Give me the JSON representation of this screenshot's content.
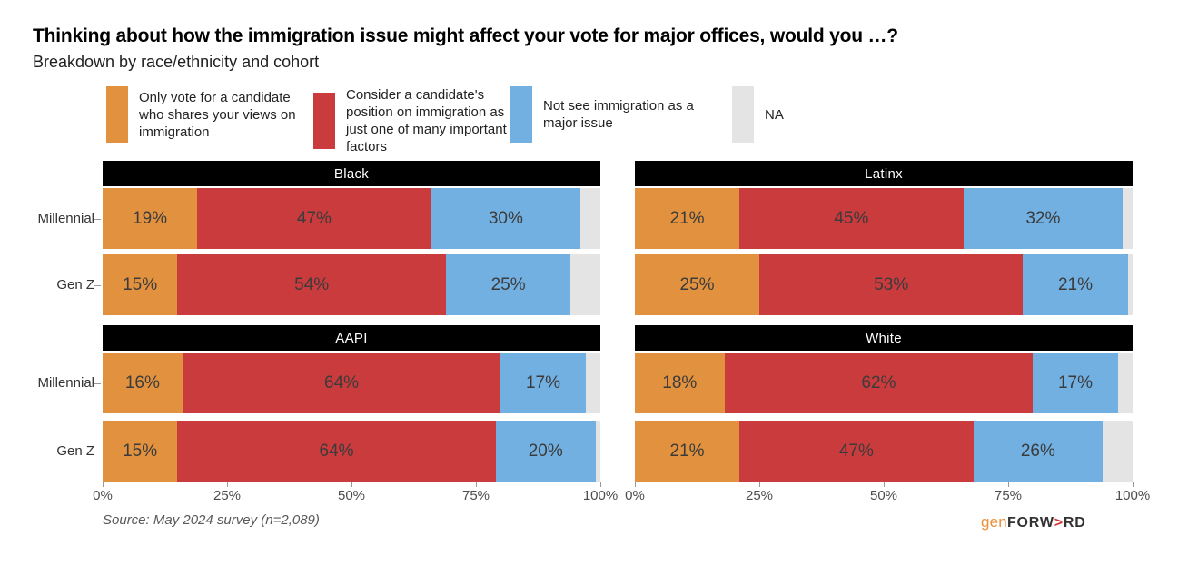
{
  "title": "Thinking about how the immigration issue might affect your vote for major offices, would you …?",
  "subtitle": "Breakdown by race/ethnicity and cohort",
  "legend": [
    {
      "label": "Only vote for a candidate who shares your views on immigration",
      "color": "#E2923F",
      "text_width": 190
    },
    {
      "label": "Consider a candidate's position on immigration as just one of many important factors",
      "color": "#C93B3D",
      "text_width": 178
    },
    {
      "label": "Not see immigration as a major issue",
      "color": "#72B0E2",
      "text_width": 180
    },
    {
      "label": "NA",
      "color": "#E4E4E4",
      "text_width": 60
    }
  ],
  "chart_data": {
    "type": "bar",
    "stacked": true,
    "orientation": "horizontal",
    "series_names": [
      "Only vote for a candidate who shares your views on immigration",
      "Consider a candidate's position on immigration as just one of many important factors",
      "Not see immigration as a major issue",
      "NA"
    ],
    "series_colors": [
      "#E2923F",
      "#C93B3D",
      "#72B0E2",
      "#E4E4E4"
    ],
    "cohorts": [
      "Millennial",
      "Gen Z"
    ],
    "xlim": [
      0,
      100
    ],
    "x_ticks": [
      "0%",
      "25%",
      "50%",
      "75%",
      "100%"
    ],
    "x_tick_values": [
      0,
      25,
      50,
      75,
      100
    ],
    "legend_position": "top",
    "grid": false,
    "na_labels_shown": false,
    "facets": [
      {
        "title": "Black",
        "rows": [
          {
            "cohort": "Millennial",
            "values": [
              19,
              47,
              30,
              4
            ]
          },
          {
            "cohort": "Gen Z",
            "values": [
              15,
              54,
              25,
              6
            ]
          }
        ]
      },
      {
        "title": "Latinx",
        "rows": [
          {
            "cohort": "Millennial",
            "values": [
              21,
              45,
              32,
              2
            ]
          },
          {
            "cohort": "Gen Z",
            "values": [
              25,
              53,
              21,
              1
            ]
          }
        ]
      },
      {
        "title": "AAPI",
        "rows": [
          {
            "cohort": "Millennial",
            "values": [
              16,
              64,
              17,
              3
            ]
          },
          {
            "cohort": "Gen Z",
            "values": [
              15,
              64,
              20,
              1
            ]
          }
        ]
      },
      {
        "title": "White",
        "rows": [
          {
            "cohort": "Millennial",
            "values": [
              18,
              62,
              17,
              3
            ]
          },
          {
            "cohort": "Gen Z",
            "values": [
              21,
              47,
              26,
              6
            ]
          }
        ]
      }
    ]
  },
  "source": "Source: May 2024 survey (n=2,089)",
  "logo": {
    "gen": "gen",
    "forw": "FORW",
    "arrow": ">",
    "rd": "RD"
  }
}
